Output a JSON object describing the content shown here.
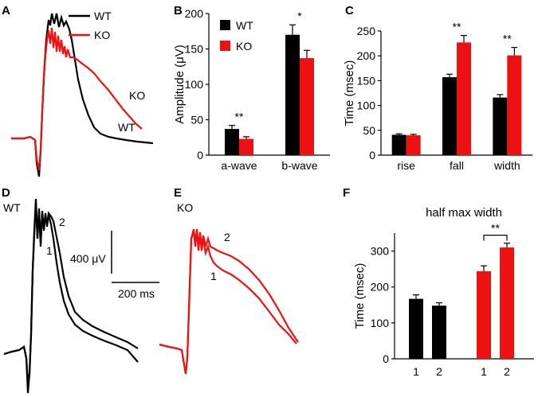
{
  "colors": {
    "wt": "#000000",
    "ko": "#ee1111"
  },
  "panel_labels": {
    "A": "A",
    "B": "B",
    "C": "C",
    "D": "D",
    "E": "E",
    "F": "F"
  },
  "panel_a": {
    "legend": [
      "WT",
      "KO"
    ],
    "trace_labels": {
      "ko": "KO",
      "wt": "WT"
    }
  },
  "panel_d": {
    "condition": "WT",
    "trace_labels": [
      "1",
      "2"
    ]
  },
  "panel_e": {
    "condition": "KO",
    "trace_labels": [
      "1",
      "2"
    ]
  },
  "scalebar": {
    "voltage": "400 μV",
    "time": "200 ms"
  },
  "chart_data": [
    {
      "id": "B",
      "type": "bar",
      "categories": [
        "a-wave",
        "b-wave"
      ],
      "series": [
        {
          "name": "WT",
          "values": [
            37,
            170
          ],
          "errors": [
            5,
            14
          ]
        },
        {
          "name": "KO",
          "values": [
            23,
            137
          ],
          "errors": [
            3,
            11
          ]
        }
      ],
      "ylabel": "Amplitude (μV)",
      "ylim": [
        0,
        200
      ],
      "yticks": [
        "0",
        "50",
        "100",
        "150",
        "200"
      ],
      "significance": [
        "**",
        "*"
      ],
      "legend": [
        "WT",
        "KO"
      ]
    },
    {
      "id": "C",
      "type": "bar",
      "categories": [
        "rise",
        "fall",
        "width"
      ],
      "series": [
        {
          "name": "WT",
          "values": [
            41,
            157,
            116
          ],
          "errors": [
            2,
            6,
            6
          ]
        },
        {
          "name": "KO",
          "values": [
            40,
            227,
            201
          ],
          "errors": [
            2,
            14,
            16
          ]
        }
      ],
      "ylabel": "Time (msec)",
      "ylim": [
        0,
        250
      ],
      "yticks": [
        "0",
        "50",
        "100",
        "150",
        "200",
        "250"
      ],
      "significance": [
        "",
        "**",
        "**"
      ]
    },
    {
      "id": "F",
      "type": "bar",
      "title": "half max width",
      "bars": [
        {
          "group": "WT",
          "label": "1",
          "value": 167,
          "error": 11
        },
        {
          "group": "WT",
          "label": "2",
          "value": 148,
          "error": 8
        },
        {
          "group": "KO",
          "label": "1",
          "value": 244,
          "error": 15
        },
        {
          "group": "KO",
          "label": "2",
          "value": 310,
          "error": 12
        }
      ],
      "ylabel": "Time (msec)",
      "ylim": [
        0,
        350
      ],
      "yticks": [
        "0",
        "100",
        "200",
        "300"
      ],
      "significance": "**"
    }
  ]
}
